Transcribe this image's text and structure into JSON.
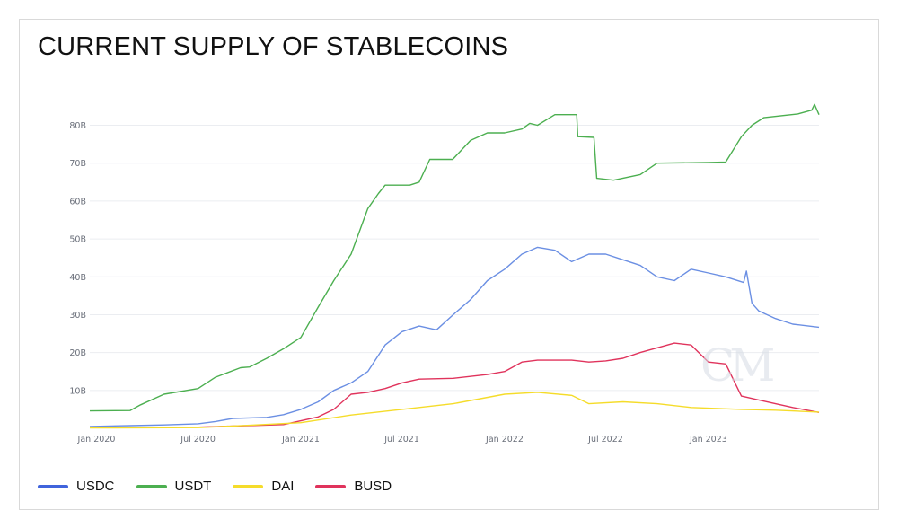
{
  "title": "CURRENT SUPPLY OF STABLECOINS",
  "watermark": "CM",
  "chart_data": {
    "type": "line",
    "xlim": [
      "2019-12-20",
      "2023-07-18"
    ],
    "ylim": [
      0,
      87
    ],
    "y_unit": "B",
    "y_ticks": [
      {
        "value": 10,
        "label": "10B"
      },
      {
        "value": 20,
        "label": "20B"
      },
      {
        "value": 30,
        "label": "30B"
      },
      {
        "value": 40,
        "label": "40B"
      },
      {
        "value": 50,
        "label": "50B"
      },
      {
        "value": 60,
        "label": "60B"
      },
      {
        "value": 70,
        "label": "70B"
      },
      {
        "value": 80,
        "label": "80B"
      }
    ],
    "x_ticks": [
      {
        "date": "2020-01-01",
        "label": "Jan 2020"
      },
      {
        "date": "2020-07-01",
        "label": "Jul 2020"
      },
      {
        "date": "2021-01-01",
        "label": "Jan 2021"
      },
      {
        "date": "2021-07-01",
        "label": "Jul 2021"
      },
      {
        "date": "2022-01-01",
        "label": "Jan 2022"
      },
      {
        "date": "2022-07-01",
        "label": "Jul 2022"
      },
      {
        "date": "2023-01-01",
        "label": "Jan 2023"
      }
    ],
    "grid": "horizontal",
    "legend_position": "bottom",
    "series": [
      {
        "name": "USDT",
        "color": "#4caf50",
        "points": [
          [
            "2019-12-20",
            4.6
          ],
          [
            "2020-03-01",
            4.7
          ],
          [
            "2020-03-20",
            6.2
          ],
          [
            "2020-05-01",
            9
          ],
          [
            "2020-07-01",
            10.5
          ],
          [
            "2020-08-01",
            13.5
          ],
          [
            "2020-09-15",
            16
          ],
          [
            "2020-10-01",
            16.2
          ],
          [
            "2020-11-01",
            18.5
          ],
          [
            "2020-12-01",
            21
          ],
          [
            "2021-01-01",
            24
          ],
          [
            "2021-02-01",
            32
          ],
          [
            "2021-03-01",
            39
          ],
          [
            "2021-04-01",
            46
          ],
          [
            "2021-05-01",
            58
          ],
          [
            "2021-05-20",
            62
          ],
          [
            "2021-06-01",
            64.2
          ],
          [
            "2021-07-15",
            64.2
          ],
          [
            "2021-08-01",
            65
          ],
          [
            "2021-08-20",
            71
          ],
          [
            "2021-09-30",
            71
          ],
          [
            "2021-11-01",
            76
          ],
          [
            "2021-12-01",
            78
          ],
          [
            "2022-01-01",
            78
          ],
          [
            "2022-02-01",
            79
          ],
          [
            "2022-02-15",
            80.5
          ],
          [
            "2022-03-01",
            80
          ],
          [
            "2022-04-01",
            82.8
          ],
          [
            "2022-05-10",
            82.8
          ],
          [
            "2022-05-12",
            77
          ],
          [
            "2022-06-10",
            76.8
          ],
          [
            "2022-06-15",
            66
          ],
          [
            "2022-07-15",
            65.5
          ],
          [
            "2022-09-01",
            67
          ],
          [
            "2022-10-01",
            70
          ],
          [
            "2023-01-01",
            70.2
          ],
          [
            "2023-02-01",
            70.3
          ],
          [
            "2023-03-01",
            77
          ],
          [
            "2023-03-20",
            80
          ],
          [
            "2023-04-10",
            82
          ],
          [
            "2023-06-10",
            83
          ],
          [
            "2023-07-05",
            84
          ],
          [
            "2023-07-10",
            85.5
          ],
          [
            "2023-07-18",
            82.8
          ]
        ]
      },
      {
        "name": "USDC",
        "color": "#6b8fe3",
        "points": [
          [
            "2019-12-20",
            0.5
          ],
          [
            "2020-03-01",
            0.7
          ],
          [
            "2020-05-01",
            0.9
          ],
          [
            "2020-07-01",
            1.2
          ],
          [
            "2020-08-01",
            1.8
          ],
          [
            "2020-09-01",
            2.6
          ],
          [
            "2020-11-01",
            2.9
          ],
          [
            "2020-12-01",
            3.6
          ],
          [
            "2021-01-01",
            5
          ],
          [
            "2021-02-01",
            7
          ],
          [
            "2021-03-01",
            10
          ],
          [
            "2021-04-01",
            12
          ],
          [
            "2021-05-01",
            15
          ],
          [
            "2021-06-01",
            22
          ],
          [
            "2021-07-01",
            25.5
          ],
          [
            "2021-08-01",
            27
          ],
          [
            "2021-09-01",
            26
          ],
          [
            "2021-10-01",
            30
          ],
          [
            "2021-11-01",
            34
          ],
          [
            "2021-12-01",
            39
          ],
          [
            "2022-01-01",
            42
          ],
          [
            "2022-02-01",
            46
          ],
          [
            "2022-03-01",
            47.8
          ],
          [
            "2022-04-01",
            47
          ],
          [
            "2022-05-01",
            44
          ],
          [
            "2022-06-01",
            46
          ],
          [
            "2022-07-01",
            46
          ],
          [
            "2022-08-01",
            44.5
          ],
          [
            "2022-09-01",
            43
          ],
          [
            "2022-10-01",
            40
          ],
          [
            "2022-11-01",
            39
          ],
          [
            "2022-12-01",
            42
          ],
          [
            "2023-01-01",
            41
          ],
          [
            "2023-02-01",
            40
          ],
          [
            "2023-03-05",
            38.5
          ],
          [
            "2023-03-10",
            41.5
          ],
          [
            "2023-03-20",
            33
          ],
          [
            "2023-04-01",
            31
          ],
          [
            "2023-05-01",
            29
          ],
          [
            "2023-06-01",
            27.5
          ],
          [
            "2023-07-18",
            26.7
          ]
        ]
      },
      {
        "name": "BUSD",
        "color": "#e0335c",
        "points": [
          [
            "2019-12-20",
            0.2
          ],
          [
            "2020-07-01",
            0.3
          ],
          [
            "2020-09-01",
            0.6
          ],
          [
            "2020-12-01",
            1
          ],
          [
            "2021-01-01",
            2
          ],
          [
            "2021-02-01",
            3
          ],
          [
            "2021-03-01",
            5
          ],
          [
            "2021-04-01",
            9
          ],
          [
            "2021-05-01",
            9.5
          ],
          [
            "2021-06-01",
            10.5
          ],
          [
            "2021-07-01",
            12
          ],
          [
            "2021-08-01",
            13
          ],
          [
            "2021-10-01",
            13.2
          ],
          [
            "2021-12-01",
            14.2
          ],
          [
            "2022-01-01",
            15
          ],
          [
            "2022-02-01",
            17.5
          ],
          [
            "2022-03-01",
            18
          ],
          [
            "2022-05-01",
            18
          ],
          [
            "2022-06-01",
            17.5
          ],
          [
            "2022-07-01",
            17.8
          ],
          [
            "2022-08-01",
            18.5
          ],
          [
            "2022-09-01",
            20
          ],
          [
            "2022-11-01",
            22.5
          ],
          [
            "2022-12-01",
            22
          ],
          [
            "2023-01-01",
            17.5
          ],
          [
            "2023-02-01",
            17
          ],
          [
            "2023-03-01",
            8.5
          ],
          [
            "2023-04-01",
            7.5
          ],
          [
            "2023-05-01",
            6.5
          ],
          [
            "2023-06-01",
            5.5
          ],
          [
            "2023-07-18",
            4.2
          ]
        ]
      },
      {
        "name": "DAI",
        "color": "#f5dc2a",
        "points": [
          [
            "2019-12-20",
            0.1
          ],
          [
            "2020-07-01",
            0.2
          ],
          [
            "2020-10-01",
            0.8
          ],
          [
            "2021-01-01",
            1.5
          ],
          [
            "2021-04-01",
            3.5
          ],
          [
            "2021-07-01",
            5
          ],
          [
            "2021-10-01",
            6.5
          ],
          [
            "2022-01-01",
            9
          ],
          [
            "2022-03-01",
            9.5
          ],
          [
            "2022-05-01",
            8.7
          ],
          [
            "2022-06-01",
            6.5
          ],
          [
            "2022-08-01",
            7
          ],
          [
            "2022-10-01",
            6.5
          ],
          [
            "2022-12-01",
            5.5
          ],
          [
            "2023-03-01",
            5
          ],
          [
            "2023-05-01",
            4.8
          ],
          [
            "2023-07-18",
            4.3
          ]
        ]
      }
    ],
    "legend": [
      {
        "name": "USDC",
        "color": "#4064dc"
      },
      {
        "name": "USDT",
        "color": "#4caf50"
      },
      {
        "name": "DAI",
        "color": "#f5dc2a"
      },
      {
        "name": "BUSD",
        "color": "#e0335c"
      }
    ]
  }
}
